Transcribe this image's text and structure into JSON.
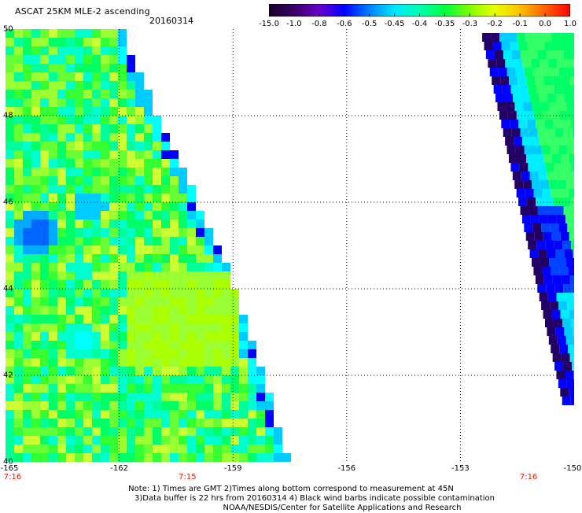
{
  "header": {
    "title": "ASCAT 25KM MLE-2 ascending",
    "date": "20160314"
  },
  "colorbar": {
    "labels": [
      "-15.0",
      "-1.0",
      "-0.8",
      "-0.6",
      "-0.5",
      "-0.45",
      "-0.4",
      "-0.35",
      "-0.3",
      "-0.2",
      "-0.1",
      "0.0",
      "1.0"
    ],
    "colors": [
      "#1a0028",
      "#3b0066",
      "#6a00c8",
      "#0000ff",
      "#0080ff",
      "#00e8ff",
      "#00ffb0",
      "#00ff40",
      "#80ff00",
      "#e8ff00",
      "#ffc000",
      "#ff6000",
      "#ff0000"
    ]
  },
  "map": {
    "lat_labels": [
      "50",
      "48",
      "46",
      "44",
      "42",
      "40"
    ],
    "lon_labels": [
      "-165",
      "-162",
      "-159",
      "-156",
      "-153",
      "-150"
    ],
    "time_labels": [
      {
        "text": "7:16",
        "lon": -165
      },
      {
        "text": "7:15",
        "lon": -160.2
      },
      {
        "text": "7:16",
        "lon": -151.2
      }
    ],
    "lat_range": [
      40,
      50
    ],
    "lon_range": [
      -165,
      -150
    ]
  },
  "footer": {
    "note_line1": "Note: 1) Times are GMT 2)Times along bottom correspond to measurement at 45N",
    "note_line2": "3)Data buffer is 22 hrs from 20160314 4) Black wind barbs indicate possible contamination",
    "credit": "NOAA/NESDIS/Center for Satellite Applications and Research"
  }
}
